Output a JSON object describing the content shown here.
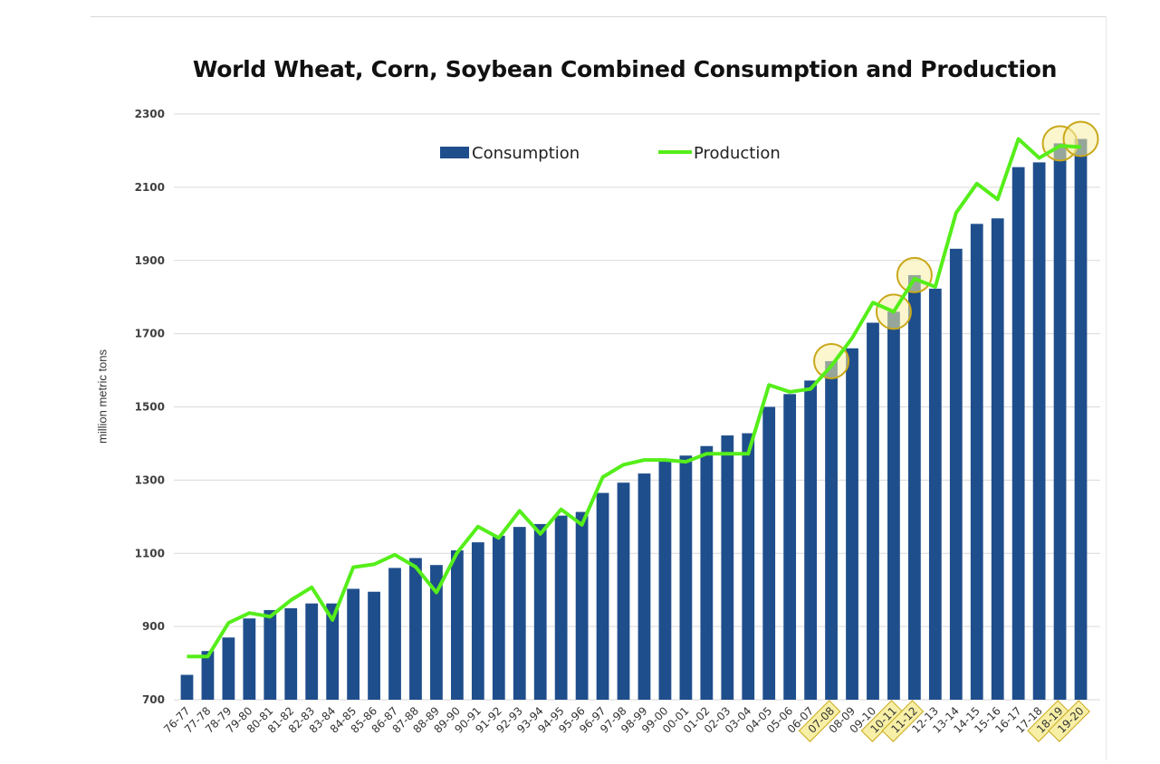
{
  "chart_data": {
    "type": "bar",
    "title": "World Wheat, Corn, Soybean Combined Consumption and Production",
    "xlabel": "",
    "ylabel": "million metric tons",
    "ylim": [
      700,
      2300
    ],
    "yticks": [
      700,
      900,
      1100,
      1300,
      1500,
      1700,
      1900,
      2100,
      2300
    ],
    "grid": true,
    "legend_position": "top",
    "categories": [
      "76-77",
      "77-78",
      "78-79",
      "79-80",
      "80-81",
      "81-82",
      "82-83",
      "83-84",
      "84-85",
      "85-86",
      "86-87",
      "87-88",
      "88-89",
      "89-90",
      "90-91",
      "91-92",
      "92-93",
      "93-94",
      "94-95",
      "95-96",
      "96-97",
      "97-98",
      "98-99",
      "99-00",
      "00-01",
      "01-02",
      "02-03",
      "03-04",
      "04-05",
      "05-06",
      "06-07",
      "07-08",
      "08-09",
      "09-10",
      "10-11",
      "11-12",
      "12-13",
      "13-14",
      "14-15",
      "15-16",
      "16-17",
      "17-18",
      "18-19",
      "19-20"
    ],
    "series": [
      {
        "name": "Consumption",
        "type": "bar",
        "color": "#1F4E8C",
        "values": [
          768,
          833,
          870,
          922,
          945,
          950,
          963,
          963,
          1003,
          995,
          1060,
          1087,
          1068,
          1108,
          1130,
          1148,
          1172,
          1180,
          1203,
          1213,
          1265,
          1293,
          1318,
          1352,
          1367,
          1393,
          1422,
          1428,
          1500,
          1535,
          1572,
          1625,
          1660,
          1730,
          1760,
          1860,
          1823,
          1932,
          2000,
          2015,
          2155,
          2168,
          2220,
          2232
        ]
      },
      {
        "name": "Production",
        "type": "line",
        "color": "#55EE1A",
        "values": [
          818,
          818,
          910,
          937,
          927,
          972,
          1007,
          918,
          1062,
          1070,
          1096,
          1063,
          993,
          1102,
          1173,
          1142,
          1216,
          1153,
          1220,
          1178,
          1308,
          1342,
          1355,
          1355,
          1350,
          1372,
          1372,
          1372,
          1560,
          1541,
          1549,
          1612,
          1688,
          1785,
          1760,
          1850,
          1828,
          2030,
          2110,
          2067,
          2232,
          2180,
          2213,
          2210
        ]
      }
    ],
    "highlighted_categories": [
      "07-08",
      "10-11",
      "11-12",
      "18-19",
      "19-20"
    ],
    "highlight_color": "#F7EFA6"
  }
}
